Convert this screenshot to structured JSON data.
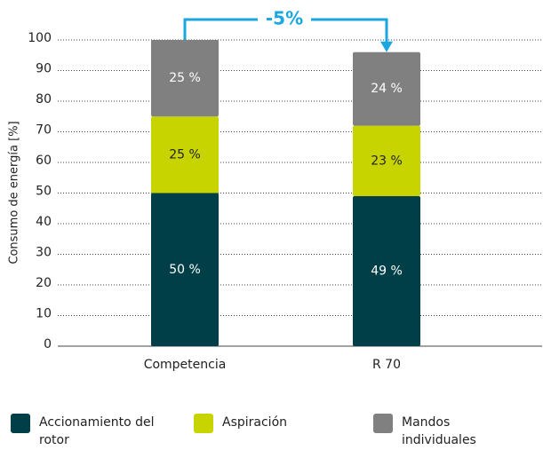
{
  "chart_data": {
    "type": "stacked_bar",
    "y_label": "Consumo de energía [%]",
    "categories": [
      "Competencia",
      "R 70"
    ],
    "series": [
      {
        "name": "Accionamiento del rotor",
        "color": "#003f48",
        "values": [
          50,
          49
        ],
        "value_labels": [
          "50 %",
          "49 %"
        ]
      },
      {
        "name": "Aspiración",
        "color": "#c8d400",
        "values": [
          25,
          23
        ],
        "value_labels": [
          "25 %",
          "23 %"
        ]
      },
      {
        "name": "Mandos individuales",
        "color": "#808080",
        "values": [
          25,
          24
        ],
        "value_labels": [
          "25 %",
          "24 %"
        ]
      }
    ],
    "ylim": [
      0,
      100
    ],
    "yticks": [
      0,
      10,
      20,
      30,
      40,
      50,
      60,
      70,
      80,
      90,
      100
    ],
    "grid": true,
    "annotation": {
      "text": "-5%",
      "color": "#1aa7df"
    }
  }
}
